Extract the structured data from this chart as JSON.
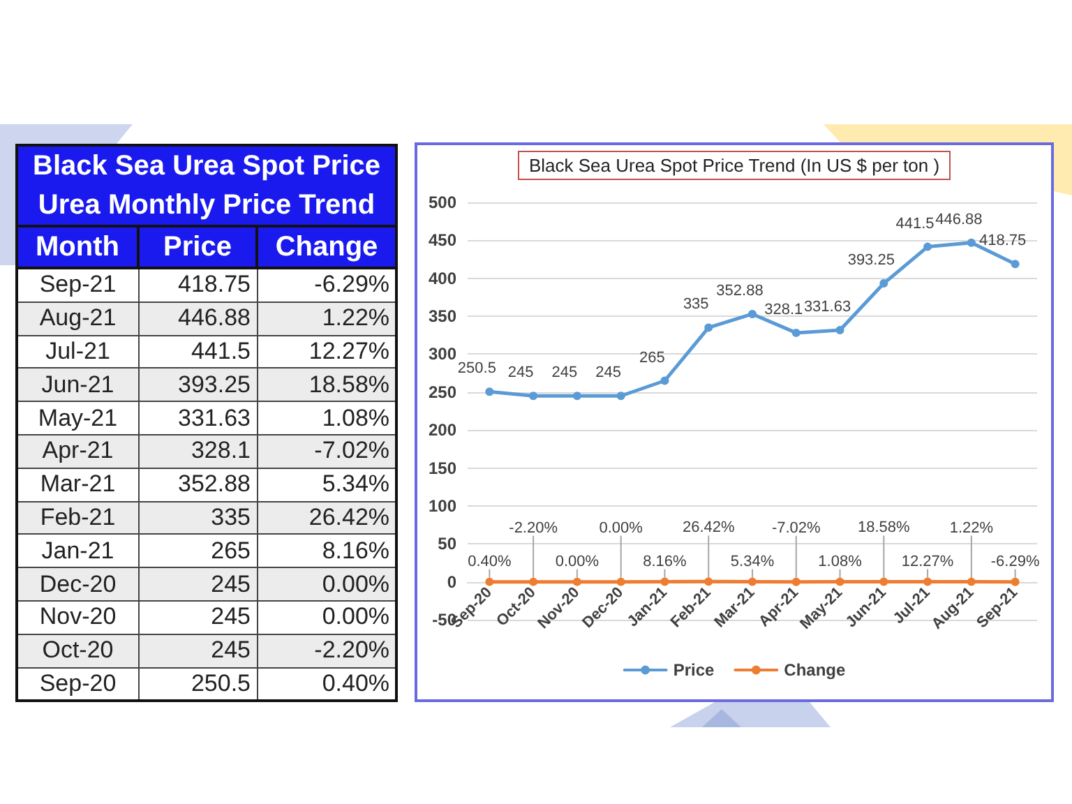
{
  "chart_data": {
    "type": "line",
    "title": "Black Sea Urea Spot Price Trend (In US $ per ton )",
    "annotations": [
      "Black Sea Urea Spot Price",
      "Urea Monthly Price Trend",
      "Month"
    ],
    "categories": [
      "Sep-20",
      "Oct-20",
      "Nov-20",
      "Dec-20",
      "Jan-21",
      "Feb-21",
      "Mar-21",
      "Apr-21",
      "May-21",
      "Jun-21",
      "Jul-21",
      "Aug-21",
      "Sep-21"
    ],
    "series": [
      {
        "name": "Price",
        "color": "#5b9bd5",
        "values": [
          250.5,
          245,
          245,
          245,
          265,
          335,
          352.88,
          328.1,
          331.63,
          393.25,
          441.5,
          446.88,
          418.75
        ],
        "value_labels": [
          "250.5",
          "245",
          "245",
          "245",
          "265",
          "335",
          "352.88",
          "328.1",
          "331.63",
          "393.25",
          "441.5",
          "446.88",
          "418.75"
        ]
      },
      {
        "name": "Change",
        "color": "#ed7d31",
        "values": [
          0.004,
          -0.022,
          0,
          0,
          0.0816,
          0.2642,
          0.0534,
          -0.0702,
          0.0108,
          0.1858,
          0.1227,
          0.0122,
          -0.0629
        ],
        "value_labels": [
          "0.40%",
          "-2.20%",
          "0.00%",
          "0.00%",
          "8.16%",
          "26.42%",
          "5.34%",
          "-7.02%",
          "1.08%",
          "18.58%",
          "12.27%",
          "1.22%",
          "-6.29%"
        ]
      }
    ],
    "ylim": [
      -50,
      500
    ],
    "yticks": [
      -50,
      0,
      50,
      100,
      150,
      200,
      250,
      300,
      350,
      400,
      450,
      500
    ],
    "grid": "y",
    "legend": "bottom",
    "marker": "circle"
  }
}
